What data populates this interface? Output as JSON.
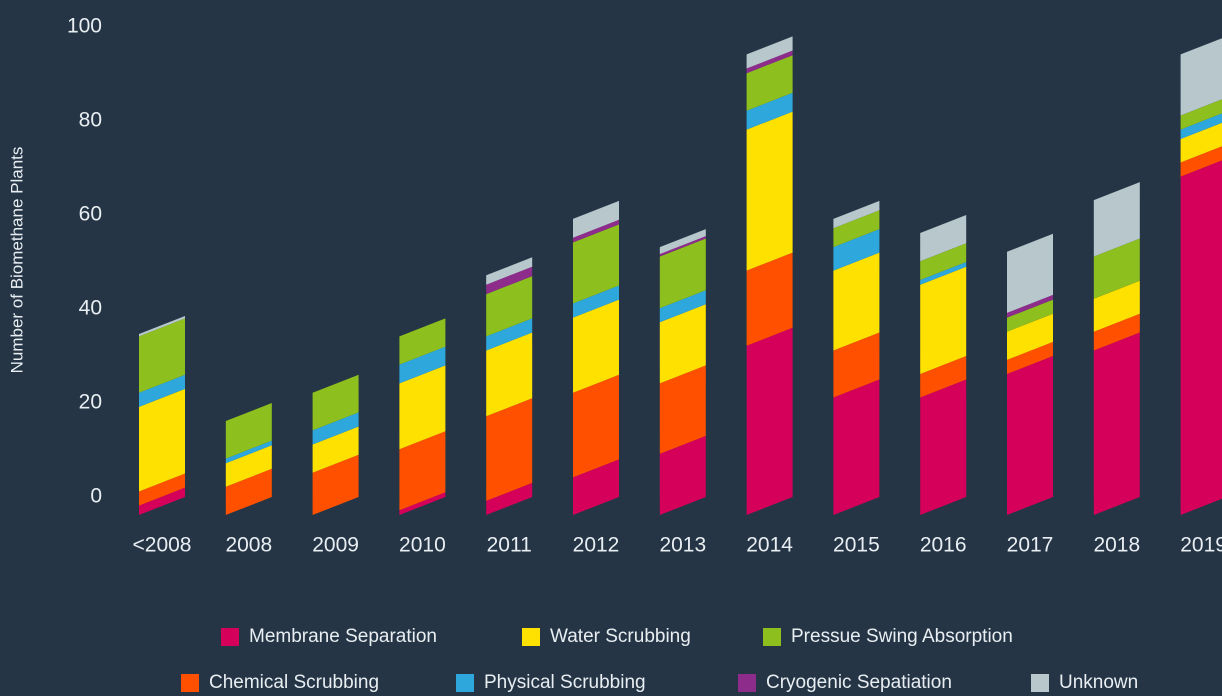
{
  "chart_data": {
    "type": "stacked_bar",
    "y_label": "Number of Biomethane Plants",
    "categories": [
      "<2008",
      "2008",
      "2009",
      "2010",
      "2011",
      "2012",
      "2013",
      "2014",
      "2015",
      "2016",
      "2017",
      "2018",
      "2019"
    ],
    "series": [
      {
        "name": "Membrane Separation",
        "color": "#d4005a",
        "values": [
          2,
          0,
          0,
          1,
          3,
          8,
          13,
          36,
          25,
          25,
          30,
          35,
          72
        ]
      },
      {
        "name": "Chemical Scrubbing",
        "color": "#ff5000",
        "values": [
          3,
          6,
          9,
          13,
          18,
          18,
          15,
          16,
          10,
          5,
          3,
          4,
          3
        ]
      },
      {
        "name": "Water Scrubbing",
        "color": "#ffe100",
        "values": [
          18,
          5,
          6,
          14,
          14,
          16,
          13,
          30,
          17,
          19,
          6,
          7,
          5
        ]
      },
      {
        "name": "Physical Scrubbing",
        "color": "#2ea8dc",
        "values": [
          3,
          1,
          3,
          4,
          3,
          3,
          3,
          4,
          5,
          1,
          0,
          0,
          2
        ]
      },
      {
        "name": "Pressue Swing Absorption",
        "color": "#8dbf1e",
        "values": [
          12,
          8,
          8,
          6,
          9,
          13,
          11,
          8,
          4,
          4,
          3,
          9,
          3
        ]
      },
      {
        "name": "Cryogenic Sepatiation",
        "color": "#8e2c8c",
        "values": [
          0,
          0,
          0,
          0,
          2,
          1,
          0.5,
          1,
          0,
          0,
          1,
          0,
          0
        ]
      },
      {
        "name": "Unknown",
        "color": "#b7c7cc",
        "values": [
          0.5,
          0,
          0,
          0,
          2,
          4,
          1.5,
          3,
          2,
          6,
          13,
          12,
          13
        ]
      }
    ],
    "ylim": [
      0,
      100
    ],
    "yticks": [
      0,
      20,
      40,
      60,
      80,
      100
    ],
    "grid": false
  }
}
